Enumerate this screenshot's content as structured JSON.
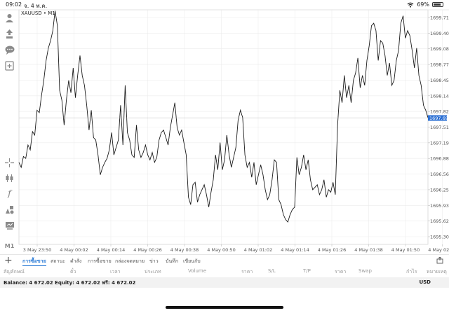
{
  "status_bar": {
    "time": "09:02",
    "date": "จ. 4 พ.ค.",
    "battery": "69%",
    "battery_level": 0.69
  },
  "chart_header": {
    "symbol": "XAUUSD • M1"
  },
  "toolbar": {
    "icons": [
      "person-icon",
      "trade-icon",
      "chat-icon",
      "add-icon",
      "crosshair-icon",
      "candles-icon",
      "indicator-icon",
      "objects-icon",
      "chart-type-icon",
      "timeframe-label"
    ],
    "timeframe": "M1"
  },
  "chart_data": {
    "type": "line",
    "symbol": "XAUUSD",
    "timeframe": "M1",
    "current_price": "1697.693",
    "y_ticks": [
      "1699.715",
      "1699.400",
      "1699.085",
      "1698.770",
      "1698.455",
      "1698.140",
      "1697.825",
      "1697.510",
      "1697.195",
      "1696.880",
      "1696.565",
      "1696.250",
      "1695.935",
      "1695.620",
      "1695.305"
    ],
    "ylim": [
      1695.15,
      1699.87
    ],
    "x_ticks": [
      "3 May 23:50",
      "4 May 00:02",
      "4 May 00:14",
      "4 May 00:26",
      "4 May 00:38",
      "4 May 00:50",
      "4 May 01:02",
      "4 May 01:14",
      "4 May 01:26",
      "4 May 01:38",
      "4 May 01:50",
      "4 May 02:02"
    ],
    "values": [
      1696.8,
      1696.7,
      1696.92,
      1696.88,
      1697.15,
      1697.05,
      1697.42,
      1697.35,
      1697.85,
      1697.8,
      1698.15,
      1698.45,
      1698.85,
      1699.1,
      1699.25,
      1699.45,
      1699.85,
      1699.55,
      1698.25,
      1698.05,
      1697.55,
      1698.05,
      1698.45,
      1698.2,
      1698.7,
      1698.1,
      1698.55,
      1698.95,
      1698.55,
      1698.35,
      1697.95,
      1697.45,
      1697.85,
      1697.3,
      1697.25,
      1696.95,
      1696.55,
      1696.7,
      1696.8,
      1696.88,
      1697.05,
      1697.4,
      1696.95,
      1697.1,
      1697.25,
      1697.95,
      1697.15,
      1698.35,
      1697.4,
      1697.25,
      1696.95,
      1696.9,
      1697.55,
      1697.05,
      1696.9,
      1697.0,
      1697.15,
      1696.95,
      1696.85,
      1697.0,
      1696.8,
      1696.9,
      1697.25,
      1697.4,
      1697.45,
      1697.3,
      1697.15,
      1697.5,
      1697.75,
      1698.0,
      1697.5,
      1697.35,
      1697.45,
      1697.2,
      1696.95,
      1696.1,
      1695.95,
      1696.35,
      1696.4,
      1696.0,
      1696.15,
      1696.25,
      1696.35,
      1696.15,
      1695.9,
      1696.2,
      1696.45,
      1696.95,
      1696.65,
      1697.2,
      1696.65,
      1696.85,
      1697.35,
      1696.95,
      1696.7,
      1696.9,
      1697.1,
      1697.65,
      1697.85,
      1697.7,
      1696.95,
      1696.7,
      1696.8,
      1696.5,
      1696.8,
      1696.35,
      1696.55,
      1696.75,
      1696.55,
      1696.25,
      1696.05,
      1696.15,
      1696.45,
      1696.85,
      1696.8,
      1696.05,
      1695.95,
      1695.75,
      1695.65,
      1695.6,
      1695.75,
      1695.85,
      1695.9,
      1696.9,
      1696.55,
      1696.7,
      1696.95,
      1696.65,
      1696.85,
      1696.45,
      1696.25,
      1696.3,
      1696.35,
      1696.15,
      1696.25,
      1696.45,
      1696.1,
      1696.25,
      1696.2,
      1696.4,
      1696.15,
      1697.55,
      1698.25,
      1698.0,
      1698.55,
      1698.1,
      1698.35,
      1698.0,
      1698.45,
      1698.6,
      1698.9,
      1698.3,
      1698.55,
      1698.35,
      1698.85,
      1699.15,
      1699.55,
      1699.6,
      1699.45,
      1698.85,
      1699.25,
      1699.2,
      1698.95,
      1698.55,
      1698.8,
      1698.35,
      1698.45,
      1698.85,
      1699.05,
      1699.6,
      1699.75,
      1699.3,
      1699.45,
      1699.35,
      1699.05,
      1698.7,
      1699.1,
      1698.55,
      1698.35,
      1697.95,
      1697.85,
      1697.7
    ]
  },
  "bottom_tabs": {
    "items": [
      "การซื้อขาย",
      "สถานะ",
      "คำสั่ง",
      "การซื้อขาย",
      "กล่องจดหมาย",
      "ข่าว",
      "บันทึก",
      "เขียนกับ"
    ],
    "active": 0
  },
  "trade_columns": [
    "สัญลักษณ์",
    "ตั๋ว",
    "เวลา",
    "ประเภท",
    "Volume",
    "ราคา",
    "S/L",
    "T/P",
    "ราคา",
    "Swap",
    "กำไร",
    "หมายเหตุ"
  ],
  "account": {
    "balance_line": "Balance: 4 672.02 Equity: 4 672.02 ฟรี: 4 672.02",
    "currency": "USD"
  },
  "colors": {
    "line": "#1a1a1a",
    "grid": "#ececec",
    "current_price_bg": "#2b6fd3",
    "active_tab": "#2b7bd6"
  }
}
